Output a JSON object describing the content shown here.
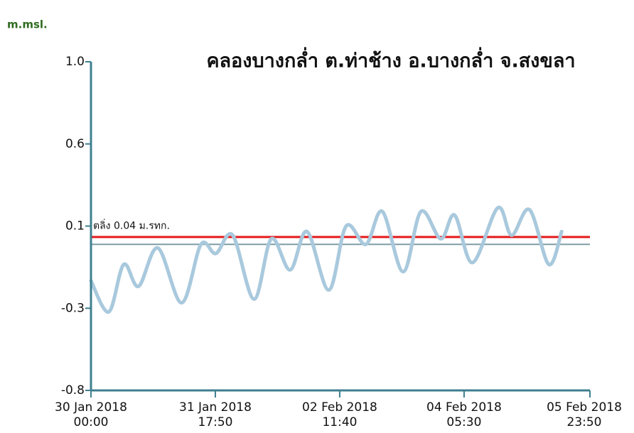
{
  "chart_data": {
    "type": "line",
    "title": "คลองบางกล่ำ ต.ท่าช้าง อ.บางกล่ำ จ.สงขลา",
    "y_label": "m.msl.",
    "ylim": [
      -0.8,
      1.0
    ],
    "yticks": [
      {
        "value": -0.8,
        "label": "-0.8"
      },
      {
        "value": -0.35,
        "label": "-0.3"
      },
      0.1,
      {
        "value": 0.55,
        "label": "0.6"
      },
      {
        "value": 1.0,
        "label": "1.0"
      }
    ],
    "xlim": [
      "2018-01-30T00:00",
      "2018-02-05T23:50"
    ],
    "xticks": [
      {
        "value": "2018-01-30T00:00",
        "label": "30 Jan 2018\n00:00"
      },
      {
        "value": "2018-01-31T17:50",
        "label": "31 Jan 2018\n17:50"
      },
      {
        "value": "2018-02-02T11:40",
        "label": "02 Feb 2018\n11:40"
      },
      {
        "value": "2018-02-04T05:30",
        "label": "04 Feb 2018\n05:30"
      },
      {
        "value": "2018-02-05T23:50",
        "label": "05 Feb 2018\n23:50"
      }
    ],
    "reference_lines": [
      {
        "label": "ตลิ่ง 0.04 ม.รทก.",
        "value": 0.04,
        "color": "#e31a1a"
      },
      {
        "value": 0,
        "color": "#7f9ca6"
      }
    ],
    "x": [
      "2018-01-30T00:00",
      "2018-01-30T06:00",
      "2018-01-30T11:00",
      "2018-01-30T16:00",
      "2018-01-30T22:30",
      "2018-01-31T06:30",
      "2018-01-31T13:00",
      "2018-01-31T18:00",
      "2018-01-31T23:40",
      "2018-02-01T06:50",
      "2018-02-01T12:40",
      "2018-02-01T19:00",
      "2018-02-02T00:40",
      "2018-02-02T08:00",
      "2018-02-02T13:50",
      "2018-02-02T20:30",
      "2018-02-03T02:00",
      "2018-02-03T09:00",
      "2018-02-03T15:00",
      "2018-02-03T21:40",
      "2018-02-04T02:20",
      "2018-02-04T08:20",
      "2018-02-04T16:50",
      "2018-02-04T21:30",
      "2018-02-05T03:30",
      "2018-02-05T10:00",
      "2018-02-05T14:20"
    ],
    "series": [
      {
        "color": "#a9c9dd",
        "values": [
          -0.2,
          -0.37,
          -0.11,
          -0.23,
          -0.02,
          -0.32,
          0.0,
          -0.05,
          0.05,
          -0.3,
          0.03,
          -0.14,
          0.07,
          -0.25,
          0.1,
          0.0,
          0.18,
          -0.15,
          0.18,
          0.03,
          0.16,
          -0.1,
          0.2,
          0.05,
          0.19,
          -0.11,
          0.07
        ]
      }
    ]
  }
}
